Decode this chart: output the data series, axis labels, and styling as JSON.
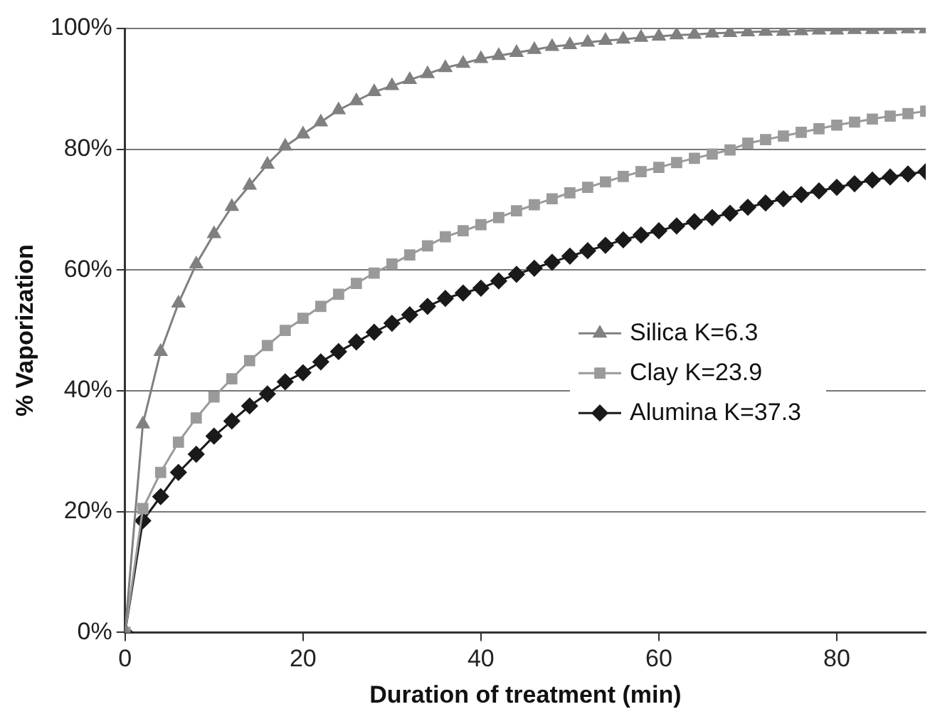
{
  "chart_data": {
    "type": "line",
    "xlabel": "Duration of treatment (min)",
    "ylabel": "% Vaporization",
    "x": [
      0,
      2,
      4,
      6,
      8,
      10,
      12,
      14,
      16,
      18,
      20,
      22,
      24,
      26,
      28,
      30,
      32,
      34,
      36,
      38,
      40,
      42,
      44,
      46,
      48,
      50,
      52,
      54,
      56,
      58,
      60,
      62,
      64,
      66,
      68,
      70,
      72,
      74,
      76,
      78,
      80,
      82,
      84,
      86,
      88,
      90
    ],
    "series": [
      {
        "name": "Silica K=6.3",
        "color": "#808080",
        "marker": "triangle",
        "values": [
          0,
          34.5,
          46.5,
          54.5,
          61,
          66,
          70.5,
          74,
          77.5,
          80.5,
          82.5,
          84.5,
          86.5,
          88,
          89.5,
          90.5,
          91.5,
          92.5,
          93.5,
          94.2,
          95,
          95.5,
          96,
          96.5,
          97,
          97.3,
          97.7,
          98,
          98.2,
          98.5,
          98.7,
          98.9,
          99,
          99.2,
          99.3,
          99.4,
          99.5,
          99.5,
          99.6,
          99.7,
          99.7,
          99.8,
          99.8,
          99.8,
          99.9,
          99.9
        ]
      },
      {
        "name": "Clay K=23.9",
        "color": "#9a9a9a",
        "marker": "square",
        "values": [
          0,
          20.5,
          26.5,
          31.5,
          35.5,
          39,
          42,
          45,
          47.5,
          50,
          52,
          54,
          56,
          57.8,
          59.5,
          61,
          62.5,
          64,
          65.5,
          66.5,
          67.5,
          68.7,
          69.8,
          70.8,
          71.8,
          72.8,
          73.7,
          74.6,
          75.5,
          76.3,
          77,
          77.8,
          78.5,
          79.2,
          79.9,
          81,
          81.6,
          82.2,
          82.8,
          83.4,
          84,
          84.5,
          85,
          85.5,
          85.9,
          86.3
        ]
      },
      {
        "name": "Alumina K=37.3",
        "color": "#1a1a1a",
        "marker": "diamond",
        "values": [
          0,
          18.5,
          22.5,
          26.5,
          29.5,
          32.5,
          35,
          37.5,
          39.5,
          41.5,
          43,
          44.8,
          46.5,
          48.1,
          49.7,
          51.2,
          52.6,
          54,
          55.3,
          56.2,
          57,
          58.2,
          59.3,
          60.3,
          61.3,
          62.3,
          63.2,
          64.1,
          65,
          65.8,
          66.5,
          67.3,
          68,
          68.7,
          69.4,
          70.4,
          71.1,
          71.8,
          72.5,
          73.1,
          73.7,
          74.3,
          74.9,
          75.4,
          75.9,
          76.3
        ]
      }
    ],
    "xlim": [
      0,
      90
    ],
    "xticks": [
      0,
      20,
      40,
      60,
      80
    ],
    "ylim": [
      0,
      100
    ],
    "yticks": [
      {
        "value": 0,
        "label": "0%"
      },
      {
        "value": 20,
        "label": "20%"
      },
      {
        "value": 40,
        "label": "40%"
      },
      {
        "value": 60,
        "label": "60%"
      },
      {
        "value": 80,
        "label": "80%"
      },
      {
        "value": 100,
        "label": "100%"
      }
    ],
    "grid": "y",
    "legend": "right",
    "line_style": "solid"
  }
}
